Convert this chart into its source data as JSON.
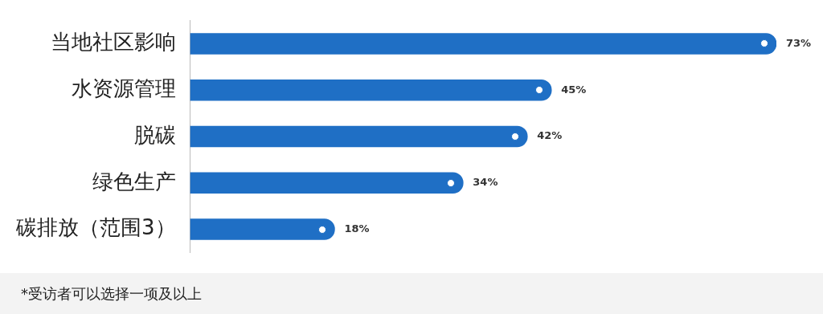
{
  "chart_data": {
    "type": "bar",
    "orientation": "horizontal",
    "categories": [
      "当地社区影响",
      "水资源管理",
      "脱碳",
      "绿色生产",
      "碳排放（范围3）"
    ],
    "values": [
      73,
      45,
      42,
      34,
      18
    ],
    "color": "#1f6fc5",
    "value_labels": [
      "73%",
      "45%",
      "42%",
      "34%",
      "18%"
    ],
    "legend": false,
    "annotations": [
      "*受访者可以选择一项及以上"
    ]
  }
}
